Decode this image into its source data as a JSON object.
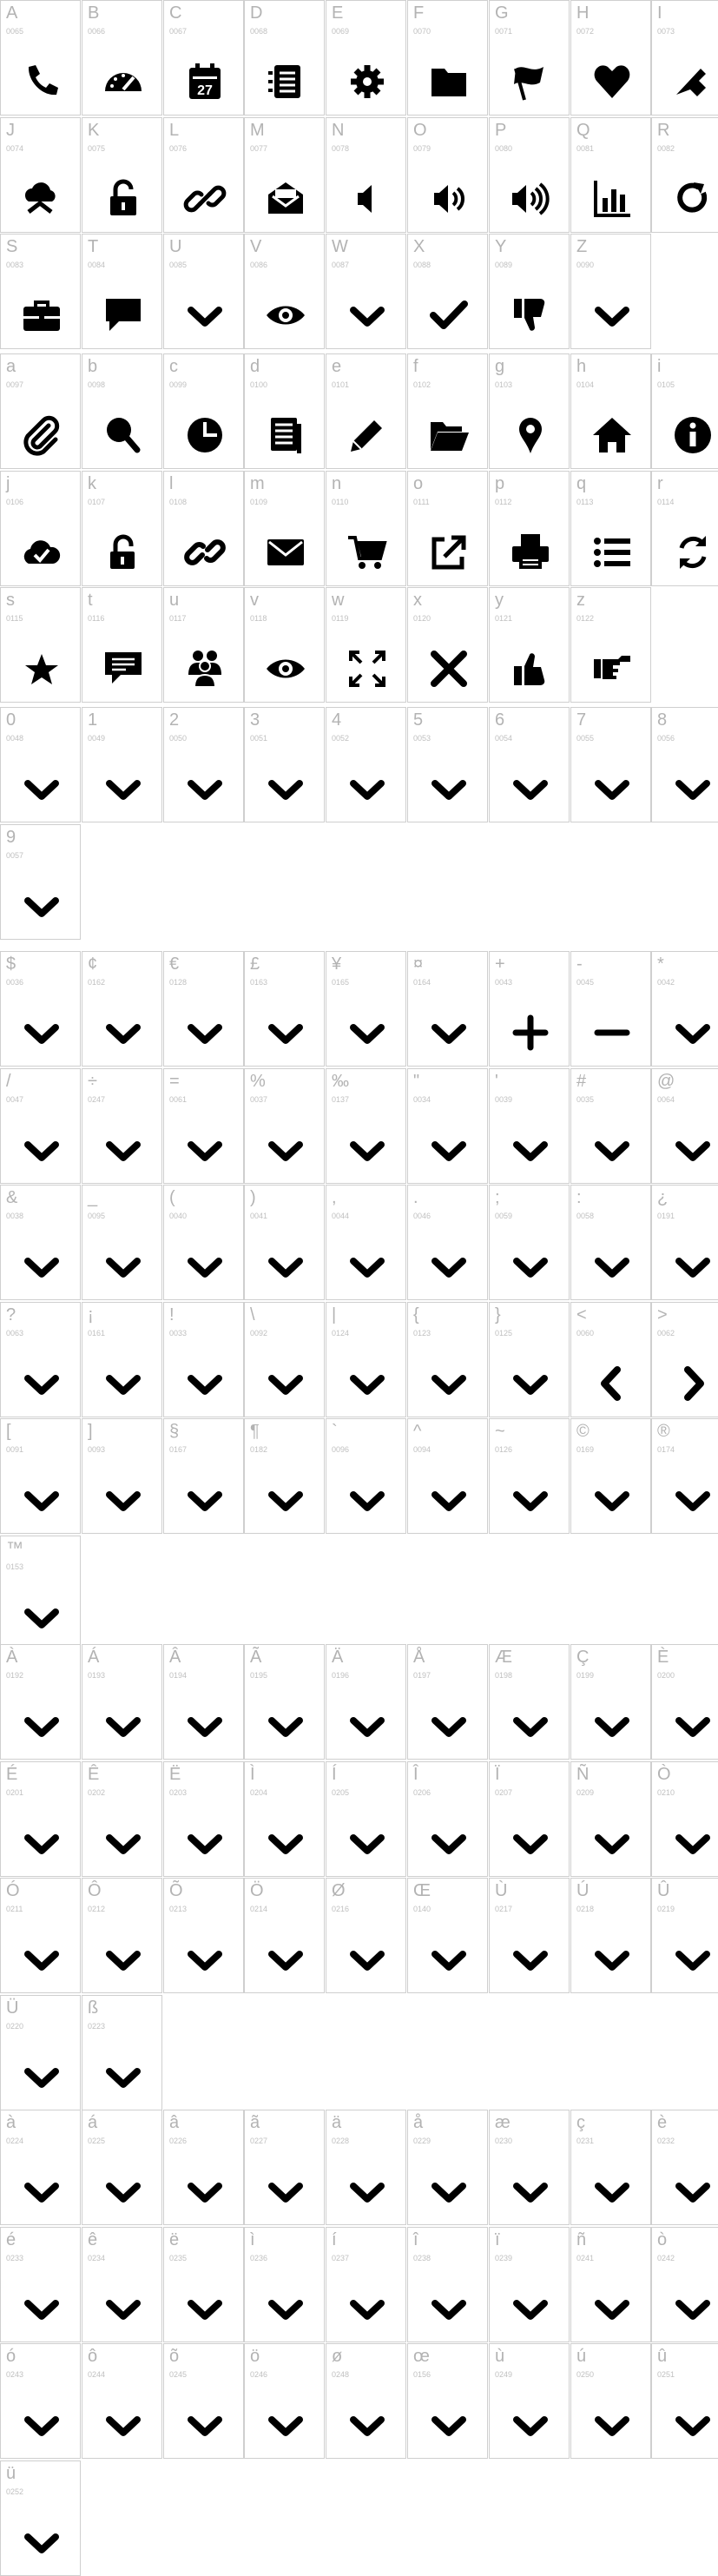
{
  "sections": [
    {
      "id": "uppercase",
      "glyphs": [
        {
          "char": "A",
          "code": "0065",
          "icon": "phone-icon"
        },
        {
          "char": "B",
          "code": "0066",
          "icon": "speedometer-icon"
        },
        {
          "char": "C",
          "code": "0067",
          "icon": "calendar-icon",
          "label": "27"
        },
        {
          "char": "D",
          "code": "0068",
          "icon": "list-card-icon"
        },
        {
          "char": "E",
          "code": "0069",
          "icon": "gear-icon"
        },
        {
          "char": "F",
          "code": "0070",
          "icon": "folder-icon"
        },
        {
          "char": "G",
          "code": "0071",
          "icon": "flag-icon"
        },
        {
          "char": "H",
          "code": "0072",
          "icon": "heart-icon"
        },
        {
          "char": "I",
          "code": "0073",
          "icon": "tag-icon"
        },
        {
          "char": "J",
          "code": "0074",
          "icon": "cloud-upload-icon"
        },
        {
          "char": "K",
          "code": "0075",
          "icon": "unlock-icon"
        },
        {
          "char": "L",
          "code": "0076",
          "icon": "link-icon"
        },
        {
          "char": "M",
          "code": "0077",
          "icon": "open-mail-icon"
        },
        {
          "char": "N",
          "code": "0078",
          "icon": "volume-low-icon"
        },
        {
          "char": "O",
          "code": "0079",
          "icon": "volume-medium-icon"
        },
        {
          "char": "P",
          "code": "0080",
          "icon": "volume-high-icon"
        },
        {
          "char": "Q",
          "code": "0081",
          "icon": "bar-chart-icon"
        },
        {
          "char": "R",
          "code": "0082",
          "icon": "refresh-icon"
        },
        {
          "char": "S",
          "code": "0083",
          "icon": "briefcase-icon"
        },
        {
          "char": "T",
          "code": "0084",
          "icon": "speech-bubble-icon"
        },
        {
          "char": "U",
          "code": "0085",
          "icon": "chevron-down-icon"
        },
        {
          "char": "V",
          "code": "0086",
          "icon": "eye-icon"
        },
        {
          "char": "W",
          "code": "0087",
          "icon": "chevron-down-icon"
        },
        {
          "char": "X",
          "code": "0088",
          "icon": "checkmark-icon"
        },
        {
          "char": "Y",
          "code": "0089",
          "icon": "thumbs-down-icon"
        },
        {
          "char": "Z",
          "code": "0090",
          "icon": "chevron-down-icon"
        }
      ]
    },
    {
      "id": "lowercase",
      "glyphs": [
        {
          "char": "a",
          "code": "0097",
          "icon": "paperclip-icon"
        },
        {
          "char": "b",
          "code": "0098",
          "icon": "magnifier-icon"
        },
        {
          "char": "c",
          "code": "0099",
          "icon": "pie-clock-icon"
        },
        {
          "char": "d",
          "code": "0100",
          "icon": "document-icon"
        },
        {
          "char": "e",
          "code": "0101",
          "icon": "pencil-icon"
        },
        {
          "char": "f",
          "code": "0102",
          "icon": "folder-open-icon"
        },
        {
          "char": "g",
          "code": "0103",
          "icon": "map-pin-icon"
        },
        {
          "char": "h",
          "code": "0104",
          "icon": "home-icon"
        },
        {
          "char": "i",
          "code": "0105",
          "icon": "info-icon"
        },
        {
          "char": "j",
          "code": "0106",
          "icon": "cloud-check-icon"
        },
        {
          "char": "k",
          "code": "0107",
          "icon": "padlock-open-icon"
        },
        {
          "char": "l",
          "code": "0108",
          "icon": "chain-link-icon"
        },
        {
          "char": "m",
          "code": "0109",
          "icon": "envelope-icon"
        },
        {
          "char": "n",
          "code": "0110",
          "icon": "cart-icon"
        },
        {
          "char": "o",
          "code": "0111",
          "icon": "external-link-icon"
        },
        {
          "char": "p",
          "code": "0112",
          "icon": "printer-icon"
        },
        {
          "char": "q",
          "code": "0113",
          "icon": "bulleted-list-icon"
        },
        {
          "char": "r",
          "code": "0114",
          "icon": "sync-icon"
        },
        {
          "char": "s",
          "code": "0115",
          "icon": "star-icon"
        },
        {
          "char": "t",
          "code": "0116",
          "icon": "comment-icon"
        },
        {
          "char": "u",
          "code": "0117",
          "icon": "users-icon"
        },
        {
          "char": "v",
          "code": "0118",
          "icon": "eye-icon"
        },
        {
          "char": "w",
          "code": "0119",
          "icon": "expand-icon"
        },
        {
          "char": "x",
          "code": "0120",
          "icon": "close-x-icon"
        },
        {
          "char": "y",
          "code": "0121",
          "icon": "thumbs-up-icon"
        },
        {
          "char": "z",
          "code": "0122",
          "icon": "pointing-hand-icon"
        }
      ]
    },
    {
      "id": "digits",
      "glyphs": [
        {
          "char": "0",
          "code": "0048",
          "icon": "chevron-down-icon"
        },
        {
          "char": "1",
          "code": "0049",
          "icon": "chevron-down-icon"
        },
        {
          "char": "2",
          "code": "0050",
          "icon": "chevron-down-icon"
        },
        {
          "char": "3",
          "code": "0051",
          "icon": "chevron-down-icon"
        },
        {
          "char": "4",
          "code": "0052",
          "icon": "chevron-down-icon"
        },
        {
          "char": "5",
          "code": "0053",
          "icon": "chevron-down-icon"
        },
        {
          "char": "6",
          "code": "0054",
          "icon": "chevron-down-icon"
        },
        {
          "char": "7",
          "code": "0055",
          "icon": "chevron-down-icon"
        },
        {
          "char": "8",
          "code": "0056",
          "icon": "chevron-down-icon"
        },
        {
          "char": "9",
          "code": "0057",
          "icon": "chevron-down-icon"
        }
      ]
    },
    {
      "id": "punctuation",
      "glyphs": [
        {
          "char": "$",
          "code": "0036",
          "icon": "chevron-down-icon"
        },
        {
          "char": "¢",
          "code": "0162",
          "icon": "chevron-down-icon"
        },
        {
          "char": "€",
          "code": "0128",
          "icon": "chevron-down-icon"
        },
        {
          "char": "£",
          "code": "0163",
          "icon": "chevron-down-icon"
        },
        {
          "char": "¥",
          "code": "0165",
          "icon": "chevron-down-icon"
        },
        {
          "char": "¤",
          "code": "0164",
          "icon": "chevron-down-icon"
        },
        {
          "char": "+",
          "code": "0043",
          "icon": "plus-icon"
        },
        {
          "char": "-",
          "code": "0045",
          "icon": "minus-icon"
        },
        {
          "char": "*",
          "code": "0042",
          "icon": "chevron-down-icon"
        },
        {
          "char": "/",
          "code": "0047",
          "icon": "chevron-down-icon"
        },
        {
          "char": "÷",
          "code": "0247",
          "icon": "chevron-down-icon"
        },
        {
          "char": "=",
          "code": "0061",
          "icon": "chevron-down-icon"
        },
        {
          "char": "%",
          "code": "0037",
          "icon": "chevron-down-icon"
        },
        {
          "char": "‰",
          "code": "0137",
          "icon": "chevron-down-icon"
        },
        {
          "char": "\"",
          "code": "0034",
          "icon": "chevron-down-icon"
        },
        {
          "char": "'",
          "code": "0039",
          "icon": "chevron-down-icon"
        },
        {
          "char": "#",
          "code": "0035",
          "icon": "chevron-down-icon"
        },
        {
          "char": "@",
          "code": "0064",
          "icon": "chevron-down-icon"
        },
        {
          "char": "&",
          "code": "0038",
          "icon": "chevron-down-icon"
        },
        {
          "char": "_",
          "code": "0095",
          "icon": "chevron-down-icon"
        },
        {
          "char": "(",
          "code": "0040",
          "icon": "chevron-down-icon"
        },
        {
          "char": ")",
          "code": "0041",
          "icon": "chevron-down-icon"
        },
        {
          "char": ",",
          "code": "0044",
          "icon": "chevron-down-icon"
        },
        {
          "char": ".",
          "code": "0046",
          "icon": "chevron-down-icon"
        },
        {
          "char": ";",
          "code": "0059",
          "icon": "chevron-down-icon"
        },
        {
          "char": ":",
          "code": "0058",
          "icon": "chevron-down-icon"
        },
        {
          "char": "¿",
          "code": "0191",
          "icon": "chevron-down-icon"
        },
        {
          "char": "?",
          "code": "0063",
          "icon": "chevron-down-icon"
        },
        {
          "char": "¡",
          "code": "0161",
          "icon": "chevron-down-icon"
        },
        {
          "char": "!",
          "code": "0033",
          "icon": "chevron-down-icon"
        },
        {
          "char": "\\",
          "code": "0092",
          "icon": "chevron-down-icon"
        },
        {
          "char": "|",
          "code": "0124",
          "icon": "chevron-down-icon"
        },
        {
          "char": "{",
          "code": "0123",
          "icon": "chevron-down-icon"
        },
        {
          "char": "}",
          "code": "0125",
          "icon": "chevron-down-icon"
        },
        {
          "char": "<",
          "code": "0060",
          "icon": "chevron-left-icon"
        },
        {
          "char": ">",
          "code": "0062",
          "icon": "chevron-right-icon"
        },
        {
          "char": "[",
          "code": "0091",
          "icon": "chevron-down-icon"
        },
        {
          "char": "]",
          "code": "0093",
          "icon": "chevron-down-icon"
        },
        {
          "char": "§",
          "code": "0167",
          "icon": "chevron-down-icon"
        },
        {
          "char": "¶",
          "code": "0182",
          "icon": "chevron-down-icon"
        },
        {
          "char": "`",
          "code": "0096",
          "icon": "chevron-down-icon"
        },
        {
          "char": "^",
          "code": "0094",
          "icon": "chevron-down-icon"
        },
        {
          "char": "~",
          "code": "0126",
          "icon": "chevron-down-icon"
        },
        {
          "char": "©",
          "code": "0169",
          "icon": "chevron-down-icon"
        },
        {
          "char": "®",
          "code": "0174",
          "icon": "chevron-down-icon"
        },
        {
          "char": "™",
          "code": "0153",
          "icon": "chevron-down-icon"
        }
      ]
    },
    {
      "id": "accented-uppercase",
      "glyphs": [
        {
          "char": "À",
          "code": "0192",
          "icon": "chevron-down-icon"
        },
        {
          "char": "Á",
          "code": "0193",
          "icon": "chevron-down-icon"
        },
        {
          "char": "Â",
          "code": "0194",
          "icon": "chevron-down-icon"
        },
        {
          "char": "Ã",
          "code": "0195",
          "icon": "chevron-down-icon"
        },
        {
          "char": "Ä",
          "code": "0196",
          "icon": "chevron-down-icon"
        },
        {
          "char": "Å",
          "code": "0197",
          "icon": "chevron-down-icon"
        },
        {
          "char": "Æ",
          "code": "0198",
          "icon": "chevron-down-icon"
        },
        {
          "char": "Ç",
          "code": "0199",
          "icon": "chevron-down-icon"
        },
        {
          "char": "È",
          "code": "0200",
          "icon": "chevron-down-icon"
        },
        {
          "char": "É",
          "code": "0201",
          "icon": "chevron-down-icon"
        },
        {
          "char": "Ê",
          "code": "0202",
          "icon": "chevron-down-icon"
        },
        {
          "char": "Ë",
          "code": "0203",
          "icon": "chevron-down-icon"
        },
        {
          "char": "Ì",
          "code": "0204",
          "icon": "chevron-down-icon"
        },
        {
          "char": "Í",
          "code": "0205",
          "icon": "chevron-down-icon"
        },
        {
          "char": "Î",
          "code": "0206",
          "icon": "chevron-down-icon"
        },
        {
          "char": "Ï",
          "code": "0207",
          "icon": "chevron-down-icon"
        },
        {
          "char": "Ñ",
          "code": "0209",
          "icon": "chevron-down-icon"
        },
        {
          "char": "Ò",
          "code": "0210",
          "icon": "chevron-down-icon"
        },
        {
          "char": "Ó",
          "code": "0211",
          "icon": "chevron-down-icon"
        },
        {
          "char": "Ô",
          "code": "0212",
          "icon": "chevron-down-icon"
        },
        {
          "char": "Õ",
          "code": "0213",
          "icon": "chevron-down-icon"
        },
        {
          "char": "Ö",
          "code": "0214",
          "icon": "chevron-down-icon"
        },
        {
          "char": "Ø",
          "code": "0216",
          "icon": "chevron-down-icon"
        },
        {
          "char": "Œ",
          "code": "0140",
          "icon": "chevron-down-icon"
        },
        {
          "char": "Ù",
          "code": "0217",
          "icon": "chevron-down-icon"
        },
        {
          "char": "Ú",
          "code": "0218",
          "icon": "chevron-down-icon"
        },
        {
          "char": "Û",
          "code": "0219",
          "icon": "chevron-down-icon"
        },
        {
          "char": "Ü",
          "code": "0220",
          "icon": "chevron-down-icon"
        },
        {
          "char": "ß",
          "code": "0223",
          "icon": "chevron-down-icon"
        }
      ]
    },
    {
      "id": "accented-lowercase",
      "glyphs": [
        {
          "char": "à",
          "code": "0224",
          "icon": "chevron-down-icon"
        },
        {
          "char": "á",
          "code": "0225",
          "icon": "chevron-down-icon"
        },
        {
          "char": "â",
          "code": "0226",
          "icon": "chevron-down-icon"
        },
        {
          "char": "ã",
          "code": "0227",
          "icon": "chevron-down-icon"
        },
        {
          "char": "ä",
          "code": "0228",
          "icon": "chevron-down-icon"
        },
        {
          "char": "å",
          "code": "0229",
          "icon": "chevron-down-icon"
        },
        {
          "char": "æ",
          "code": "0230",
          "icon": "chevron-down-icon"
        },
        {
          "char": "ç",
          "code": "0231",
          "icon": "chevron-down-icon"
        },
        {
          "char": "è",
          "code": "0232",
          "icon": "chevron-down-icon"
        },
        {
          "char": "é",
          "code": "0233",
          "icon": "chevron-down-icon"
        },
        {
          "char": "ê",
          "code": "0234",
          "icon": "chevron-down-icon"
        },
        {
          "char": "ë",
          "code": "0235",
          "icon": "chevron-down-icon"
        },
        {
          "char": "ì",
          "code": "0236",
          "icon": "chevron-down-icon"
        },
        {
          "char": "í",
          "code": "0237",
          "icon": "chevron-down-icon"
        },
        {
          "char": "î",
          "code": "0238",
          "icon": "chevron-down-icon"
        },
        {
          "char": "ï",
          "code": "0239",
          "icon": "chevron-down-icon"
        },
        {
          "char": "ñ",
          "code": "0241",
          "icon": "chevron-down-icon"
        },
        {
          "char": "ò",
          "code": "0242",
          "icon": "chevron-down-icon"
        },
        {
          "char": "ó",
          "code": "0243",
          "icon": "chevron-down-icon"
        },
        {
          "char": "ô",
          "code": "0244",
          "icon": "chevron-down-icon"
        },
        {
          "char": "õ",
          "code": "0245",
          "icon": "chevron-down-icon"
        },
        {
          "char": "ö",
          "code": "0246",
          "icon": "chevron-down-icon"
        },
        {
          "char": "ø",
          "code": "0248",
          "icon": "chevron-down-icon"
        },
        {
          "char": "œ",
          "code": "0156",
          "icon": "chevron-down-icon"
        },
        {
          "char": "ù",
          "code": "0249",
          "icon": "chevron-down-icon"
        },
        {
          "char": "ú",
          "code": "0250",
          "icon": "chevron-down-icon"
        },
        {
          "char": "û",
          "code": "0251",
          "icon": "chevron-down-icon"
        },
        {
          "char": "ü",
          "code": "0252",
          "icon": "chevron-down-icon"
        }
      ]
    }
  ]
}
